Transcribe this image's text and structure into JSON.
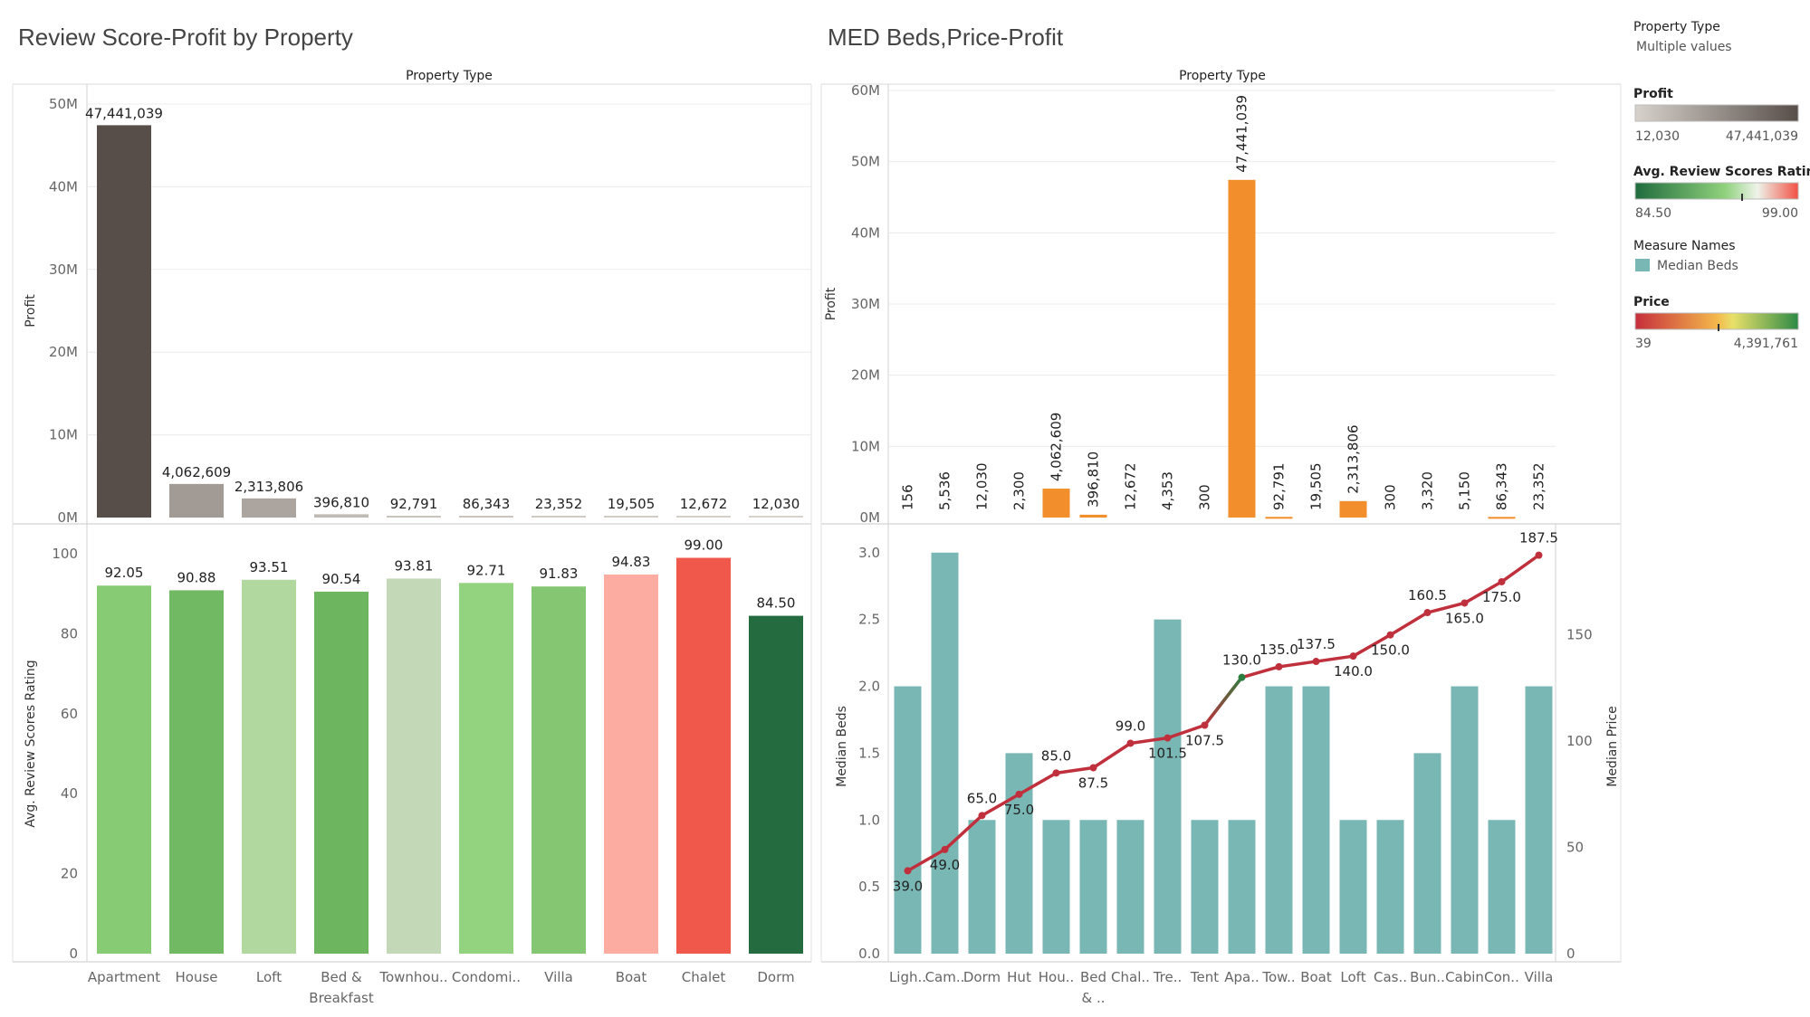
{
  "dashboard": {
    "left_title": "Review Score-Profit by Property",
    "right_title": "MED Beds,Price-Profit",
    "header": "Property Type"
  },
  "legend": {
    "filter": {
      "title": "Property Type",
      "value": "Multiple values"
    },
    "profit": {
      "title": "Profit",
      "min": "12,030",
      "max": "47,441,039",
      "colors": [
        "#d8d2cc",
        "#574e4a"
      ]
    },
    "review": {
      "title": "Avg. Review Scores Rating",
      "min": "84.50",
      "max": "99.00",
      "colors": [
        "#1f6b3d",
        "#8fd17c",
        "#f25044"
      ]
    },
    "measure": {
      "title": "Measure Names",
      "item": "Median Beds",
      "color": "#78b7b3"
    },
    "price": {
      "title": "Price",
      "min": "39",
      "max": "4,391,761",
      "colors": [
        "#c62e3c",
        "#f4b74b",
        "#2e8a45"
      ]
    }
  },
  "chart_data": [
    {
      "type": "bar",
      "id": "left-profit",
      "categories": [
        "Apartment",
        "House",
        "Loft",
        "Bed & Breakfast",
        "Townhou..",
        "Condomi..",
        "Villa",
        "Boat",
        "Chalet",
        "Dorm"
      ],
      "category_lines": [
        [
          "Apartment"
        ],
        [
          "House"
        ],
        [
          "Loft"
        ],
        [
          "Bed &",
          "Breakfast"
        ],
        [
          "Townhou.."
        ],
        [
          "Condomi.."
        ],
        [
          "Villa"
        ],
        [
          "Boat"
        ],
        [
          "Chalet"
        ],
        [
          "Dorm"
        ]
      ],
      "values": [
        47441039,
        4062609,
        2313806,
        396810,
        92791,
        86343,
        23352,
        19505,
        12672,
        12030
      ],
      "labels": [
        "47,441,039",
        "4,062,609",
        "2,313,806",
        "396,810",
        "92,791",
        "86,343",
        "23,352",
        "19,505",
        "12,672",
        "12,030"
      ],
      "ylabel": "Profit",
      "ylim": [
        0,
        50000000
      ],
      "yticks": [
        0,
        10000000,
        20000000,
        30000000,
        40000000,
        50000000
      ],
      "ytick_labels": [
        "0M",
        "10M",
        "20M",
        "30M",
        "40M",
        "50M"
      ]
    },
    {
      "type": "bar",
      "id": "left-review",
      "categories": [
        "Apartment",
        "House",
        "Loft",
        "Bed & Breakfast",
        "Townhou..",
        "Condomi..",
        "Villa",
        "Boat",
        "Chalet",
        "Dorm"
      ],
      "values": [
        92.05,
        90.88,
        93.51,
        90.54,
        93.81,
        92.71,
        91.83,
        94.83,
        99.0,
        84.5
      ],
      "labels": [
        "92.05",
        "90.88",
        "93.51",
        "90.54",
        "93.81",
        "92.71",
        "91.83",
        "94.83",
        "99.00",
        "84.50"
      ],
      "colors": [
        "#88cb75",
        "#72b964",
        "#b0d89f",
        "#6eb560",
        "#c2d8b6",
        "#93d27f",
        "#84c671",
        "#fcaca0",
        "#f0584c",
        "#246b3f"
      ],
      "ylabel": "Avg. Review Scores Rating",
      "ylim": [
        0,
        105
      ],
      "yticks": [
        0,
        20,
        40,
        60,
        80,
        100
      ],
      "ytick_labels": [
        "0",
        "20",
        "40",
        "60",
        "80",
        "100"
      ]
    },
    {
      "type": "bar",
      "id": "right-profit",
      "categories": [
        "Ligh..",
        "Cam..",
        "Dorm",
        "Hut",
        "Hou..",
        "Bed & ..",
        "Chal..",
        "Tre..",
        "Tent",
        "Apa..",
        "Tow..",
        "Boat",
        "Loft",
        "Cas..",
        "Bun..",
        "Cabin",
        "Con..",
        "Villa"
      ],
      "values": [
        156,
        5536,
        12030,
        2300,
        4062609,
        396810,
        12672,
        4353,
        300,
        47441039,
        92791,
        19505,
        2313806,
        300,
        3320,
        5150,
        86343,
        23352
      ],
      "labels": [
        "156",
        "5,536",
        "12,030",
        "2,300",
        "4,062,609",
        "396,810",
        "12,672",
        "4,353",
        "300",
        "47,441,039",
        "92,791",
        "19,505",
        "2,313,806",
        "300",
        "3,320",
        "5,150",
        "86,343",
        "23,352"
      ],
      "color": "#f28e2b",
      "ylabel": "Profit",
      "ylim": [
        0,
        60000000
      ],
      "yticks": [
        0,
        10000000,
        20000000,
        30000000,
        40000000,
        50000000,
        60000000
      ],
      "ytick_labels": [
        "0M",
        "10M",
        "20M",
        "30M",
        "40M",
        "50M",
        "60M"
      ]
    },
    {
      "type": "bar+line",
      "id": "right-beds-price",
      "categories": [
        "Ligh..",
        "Cam..",
        "Dorm",
        "Hut",
        "Hou..",
        "Bed & ..",
        "Chal..",
        "Tre..",
        "Tent",
        "Apa..",
        "Tow..",
        "Boat",
        "Loft",
        "Cas..",
        "Bun..",
        "Cabin",
        "Con..",
        "Villa"
      ],
      "category_lines": [
        [
          "Ligh.."
        ],
        [
          "Cam.."
        ],
        [
          "Dorm"
        ],
        [
          "Hut"
        ],
        [
          "Hou.."
        ],
        [
          "Bed",
          "& .."
        ],
        [
          "Chal.."
        ],
        [
          "Tre.."
        ],
        [
          "Tent"
        ],
        [
          "Apa.."
        ],
        [
          "Tow.."
        ],
        [
          "Boat"
        ],
        [
          "Loft"
        ],
        [
          "Cas.."
        ],
        [
          "Bun.."
        ],
        [
          "Cabin"
        ],
        [
          "Con.."
        ],
        [
          "Villa"
        ]
      ],
      "series": [
        {
          "name": "Median Beds",
          "type": "bar",
          "values": [
            2.0,
            3.0,
            1.0,
            1.5,
            1.0,
            1.0,
            1.0,
            2.5,
            1.0,
            1.0,
            2.0,
            2.0,
            1.0,
            1.0,
            1.5,
            2.0,
            1.0,
            2.0
          ]
        },
        {
          "type": "line",
          "values": [
            39.0,
            49.0,
            65.0,
            75.0,
            85.0,
            87.5,
            99.0,
            101.5,
            107.5,
            130.0,
            135.0,
            137.5,
            140.0,
            150.0,
            160.5,
            165.0,
            175.0,
            187.5
          ],
          "labels": [
            "39.0",
            "49.0",
            "65.0",
            "75.0",
            "85.0",
            "87.5",
            "99.0",
            "101.5",
            "107.5",
            "130.0",
            "135.0",
            "137.5",
            "140.0",
            "150.0",
            "160.5",
            "165.0",
            "175.0",
            "187.5"
          ]
        }
      ],
      "ylabel": "Median Beds",
      "ylim": [
        0,
        3.1
      ],
      "yticks": [
        0,
        0.5,
        1.0,
        1.5,
        2.0,
        2.5,
        3.0
      ],
      "ytick_labels": [
        "0.0",
        "0.5",
        "1.0",
        "1.5",
        "2.0",
        "2.5",
        "3.0"
      ],
      "y2label": "Median Price",
      "y2lim": [
        0,
        195
      ],
      "y2ticks": [
        0,
        50,
        100,
        150
      ],
      "y2tick_labels": [
        "0",
        "50",
        "100",
        "150"
      ]
    }
  ]
}
